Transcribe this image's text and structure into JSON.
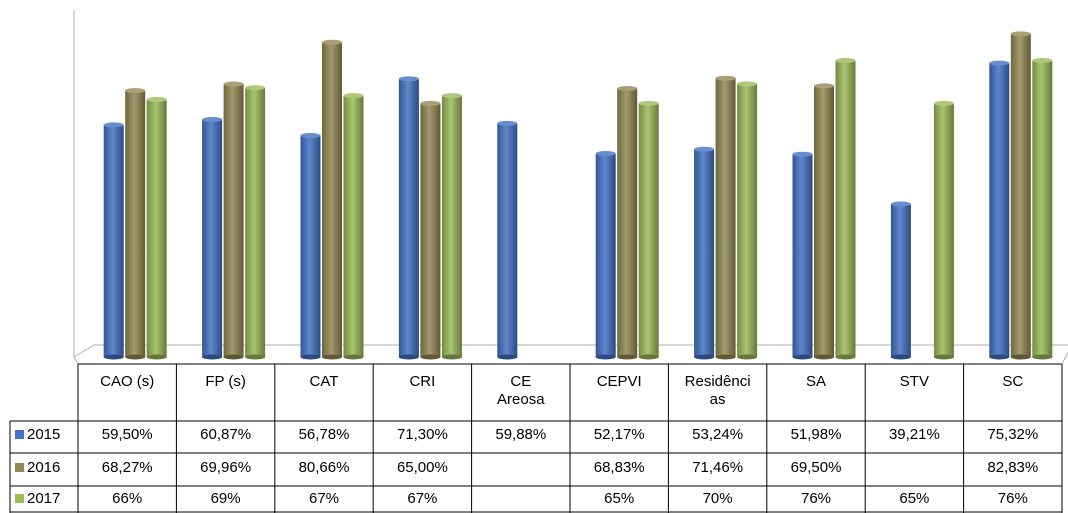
{
  "chart_data": {
    "type": "bar",
    "categories": [
      "CAO (s)",
      "FP (s)",
      "CAT",
      "CRI",
      "CE Areosa",
      "CEPVI",
      "Residências",
      "SA",
      "STV",
      "SC"
    ],
    "category_label_lines": [
      [
        "CAO (s)"
      ],
      [
        "FP (s)"
      ],
      [
        "CAT"
      ],
      [
        "CRI"
      ],
      [
        "CE",
        "Areosa"
      ],
      [
        "CEPVI"
      ],
      [
        "Residênci",
        "as"
      ],
      [
        "SA"
      ],
      [
        "STV"
      ],
      [
        "SC"
      ]
    ],
    "series": [
      {
        "name": "2015",
        "color": "#4472c4",
        "values": [
          59.5,
          60.87,
          56.78,
          71.3,
          59.88,
          52.17,
          53.24,
          51.98,
          39.21,
          75.32
        ],
        "labels": [
          "59,50%",
          "60,87%",
          "56,78%",
          "71,30%",
          "59,88%",
          "52,17%",
          "53,24%",
          "51,98%",
          "39,21%",
          "75,32%"
        ]
      },
      {
        "name": "2016",
        "color": "#938953",
        "values": [
          68.27,
          69.96,
          80.66,
          65.0,
          null,
          68.83,
          71.46,
          69.5,
          null,
          82.83
        ],
        "labels": [
          "68,27%",
          "69,96%",
          "80,66%",
          "65,00%",
          "",
          "68,83%",
          "71,46%",
          "69,50%",
          "",
          "82,83%"
        ]
      },
      {
        "name": "2017",
        "color": "#9bbb59",
        "values": [
          66,
          69,
          67,
          67,
          null,
          65,
          70,
          76,
          65,
          76
        ],
        "labels": [
          "66%",
          "69%",
          "67%",
          "67%",
          "",
          "65%",
          "70%",
          "76%",
          "65%",
          "76%"
        ]
      }
    ],
    "ylim": [
      0,
      90
    ],
    "grid": false,
    "legend": "data-table"
  }
}
